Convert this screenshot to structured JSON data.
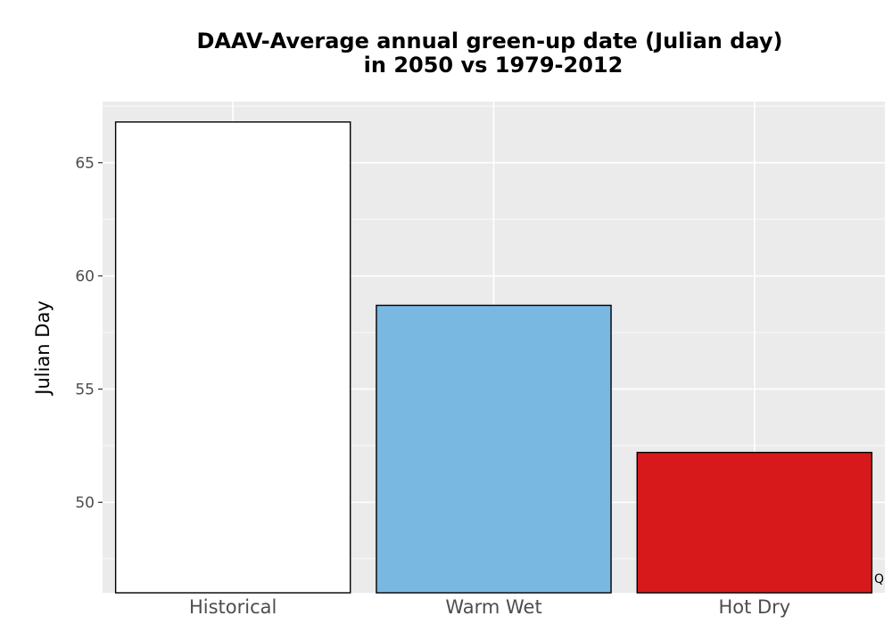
{
  "chart_data": {
    "type": "bar",
    "title_lines": [
      "DAAV-Average annual green-up date (Julian day)",
      "in 2050 vs 1979-2012"
    ],
    "xlabel": "",
    "ylabel": "Julian Day",
    "categories": [
      "Historical",
      "Warm Wet",
      "Hot Dry"
    ],
    "values": [
      66.8,
      58.7,
      52.2
    ],
    "colors": [
      "#ffffff",
      "#79b8e1",
      "#d7191c"
    ],
    "yticks": [
      50,
      55,
      60,
      65
    ],
    "ylim": [
      46,
      67.7
    ],
    "grid": true,
    "panel_background": "#ebebeb",
    "bar_outline": "#000000",
    "corner_text": "Q"
  }
}
